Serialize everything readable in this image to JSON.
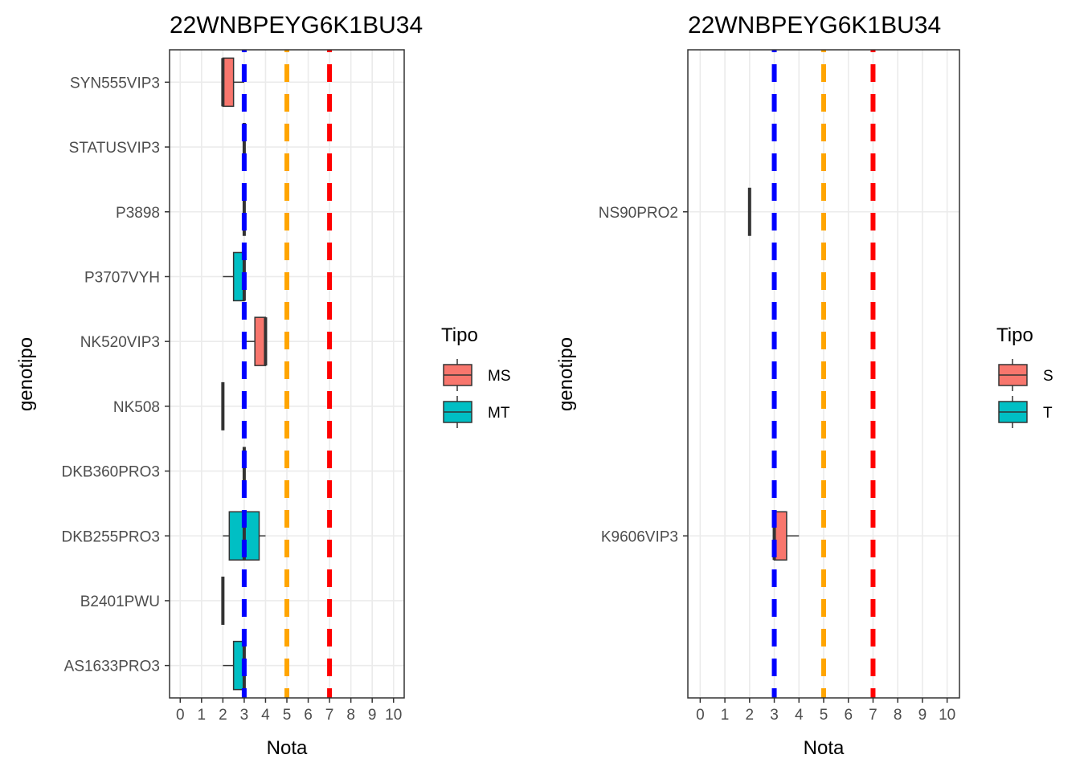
{
  "colors": {
    "fill_first": "#F8766D",
    "fill_second": "#00BFC4",
    "ref_low": "#0000FF",
    "ref_mid": "#FFA500",
    "ref_high": "#FF0000",
    "outline": "#333333",
    "grid": "#ebebeb"
  },
  "chart_data": [
    {
      "type": "boxplot",
      "orientation": "horizontal",
      "title": "22WNBPEYG6K1BU34",
      "xlabel": "Nota",
      "ylabel": "genotipo",
      "xlim": [
        -0.5,
        10.5
      ],
      "xticks": [
        0,
        1,
        2,
        3,
        4,
        5,
        6,
        7,
        8,
        9,
        10
      ],
      "reference_lines": [
        3,
        5,
        7
      ],
      "grid": true,
      "legend": {
        "title": "Tipo",
        "position": "right",
        "entries": [
          "MS",
          "MT"
        ]
      },
      "categories": [
        "SYN555VIP3",
        "STATUSVIP3",
        "P3898",
        "P3707VYH",
        "NK520VIP3",
        "NK508",
        "DKB360PRO3",
        "DKB255PRO3",
        "B2401PWU",
        "AS1633PRO3"
      ],
      "boxes": [
        {
          "genotipo": "SYN555VIP3",
          "tipo": "MS",
          "min": 2,
          "q1": 2,
          "median": 2,
          "q3": 2.5,
          "max": 3
        },
        {
          "genotipo": "STATUSVIP3",
          "tipo": "",
          "min": 3,
          "q1": 3,
          "median": 3,
          "q3": 3,
          "max": 3
        },
        {
          "genotipo": "P3898",
          "tipo": "",
          "min": 3,
          "q1": 3,
          "median": 3,
          "q3": 3,
          "max": 3
        },
        {
          "genotipo": "P3707VYH",
          "tipo": "MT",
          "min": 2,
          "q1": 2.5,
          "median": 3,
          "q3": 3,
          "max": 3
        },
        {
          "genotipo": "NK520VIP3",
          "tipo": "MS",
          "min": 3,
          "q1": 3.5,
          "median": 4,
          "q3": 4,
          "max": 4
        },
        {
          "genotipo": "NK508",
          "tipo": "",
          "min": 2,
          "q1": 2,
          "median": 2,
          "q3": 2,
          "max": 2
        },
        {
          "genotipo": "DKB360PRO3",
          "tipo": "",
          "min": 3,
          "q1": 3,
          "median": 3,
          "q3": 3,
          "max": 3
        },
        {
          "genotipo": "DKB255PRO3",
          "tipo": "MT",
          "min": 2,
          "q1": 2.3,
          "median": 3,
          "q3": 3.7,
          "max": 4
        },
        {
          "genotipo": "B2401PWU",
          "tipo": "",
          "min": 2,
          "q1": 2,
          "median": 2,
          "q3": 2,
          "max": 2
        },
        {
          "genotipo": "AS1633PRO3",
          "tipo": "MT",
          "min": 2,
          "q1": 2.5,
          "median": 3,
          "q3": 3,
          "max": 3
        }
      ]
    },
    {
      "type": "boxplot",
      "orientation": "horizontal",
      "title": "22WNBPEYG6K1BU34",
      "xlabel": "Nota",
      "ylabel": "genotipo",
      "xlim": [
        -0.5,
        10.5
      ],
      "xticks": [
        0,
        1,
        2,
        3,
        4,
        5,
        6,
        7,
        8,
        9,
        10
      ],
      "reference_lines": [
        3,
        5,
        7
      ],
      "grid": true,
      "legend": {
        "title": "Tipo",
        "position": "right",
        "entries": [
          "S",
          "T"
        ]
      },
      "categories": [
        "NS90PRO2",
        "K9606VIP3"
      ],
      "boxes": [
        {
          "genotipo": "NS90PRO2",
          "tipo": "",
          "min": 2,
          "q1": 2,
          "median": 2,
          "q3": 2,
          "max": 2
        },
        {
          "genotipo": "K9606VIP3",
          "tipo": "S",
          "min": 3,
          "q1": 3,
          "median": 3,
          "q3": 3.5,
          "max": 4
        }
      ]
    }
  ]
}
